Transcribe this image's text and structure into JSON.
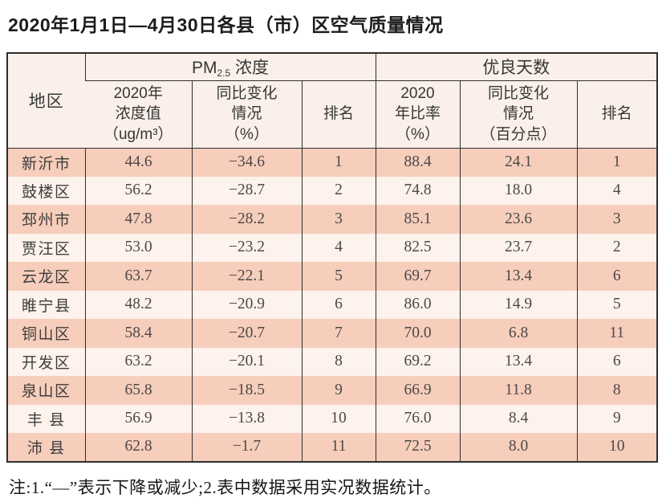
{
  "title": "2020年1月1日—4月30日各县（市）区空气质量情况",
  "table": {
    "group_headers": {
      "region": "地区",
      "pm25_prefix": "PM",
      "pm25_sub": "2.5",
      "pm25_suffix": " 浓度",
      "good_days": "优良天数"
    },
    "sub_headers": [
      "2020年\n浓度值\n（ug/m³）",
      "同比变化\n情况\n（%）",
      "排名",
      "2020\n年比率\n（%）",
      "同比变化\n情况\n（百分点）",
      "排名"
    ],
    "rows": [
      {
        "region": "新沂市",
        "pm_value": "44.6",
        "pm_change": "−34.6",
        "pm_rank": "1",
        "good_rate": "88.4",
        "good_change": "24.1",
        "good_rank": "1"
      },
      {
        "region": "鼓楼区",
        "pm_value": "56.2",
        "pm_change": "−28.7",
        "pm_rank": "2",
        "good_rate": "74.8",
        "good_change": "18.0",
        "good_rank": "4"
      },
      {
        "region": "邳州市",
        "pm_value": "47.8",
        "pm_change": "−28.2",
        "pm_rank": "3",
        "good_rate": "85.1",
        "good_change": "23.6",
        "good_rank": "3"
      },
      {
        "region": "贾汪区",
        "pm_value": "53.0",
        "pm_change": "−23.2",
        "pm_rank": "4",
        "good_rate": "82.5",
        "good_change": "23.7",
        "good_rank": "2"
      },
      {
        "region": "云龙区",
        "pm_value": "63.7",
        "pm_change": "−22.1",
        "pm_rank": "5",
        "good_rate": "69.7",
        "good_change": "13.4",
        "good_rank": "6"
      },
      {
        "region": "睢宁县",
        "pm_value": "48.2",
        "pm_change": "−20.9",
        "pm_rank": "6",
        "good_rate": "86.0",
        "good_change": "14.9",
        "good_rank": "5"
      },
      {
        "region": "铜山区",
        "pm_value": "58.4",
        "pm_change": "−20.7",
        "pm_rank": "7",
        "good_rate": "70.0",
        "good_change": "6.8",
        "good_rank": "11"
      },
      {
        "region": "开发区",
        "pm_value": "63.2",
        "pm_change": "−20.1",
        "pm_rank": "8",
        "good_rate": "69.2",
        "good_change": "13.4",
        "good_rank": "6"
      },
      {
        "region": "泉山区",
        "pm_value": "65.8",
        "pm_change": "−18.5",
        "pm_rank": "9",
        "good_rate": "66.9",
        "good_change": "11.8",
        "good_rank": "8"
      },
      {
        "region": "丰 县",
        "pm_value": "56.9",
        "pm_change": "−13.8",
        "pm_rank": "10",
        "good_rate": "76.0",
        "good_change": "8.4",
        "good_rank": "9"
      },
      {
        "region": "沛 县",
        "pm_value": "62.8",
        "pm_change": "−1.7",
        "pm_rank": "11",
        "good_rate": "72.5",
        "good_change": "8.0",
        "good_rank": "10"
      }
    ]
  },
  "footnote": "注:1.“—”表示下降或减少;2.表中数据采用实况数据统计。",
  "colors": {
    "row_odd": "#f7cdbb",
    "row_even": "#fdf2ec",
    "header_bg": "#faf0e9",
    "border": "#2e2e2e",
    "text": "#4a4a4a"
  }
}
